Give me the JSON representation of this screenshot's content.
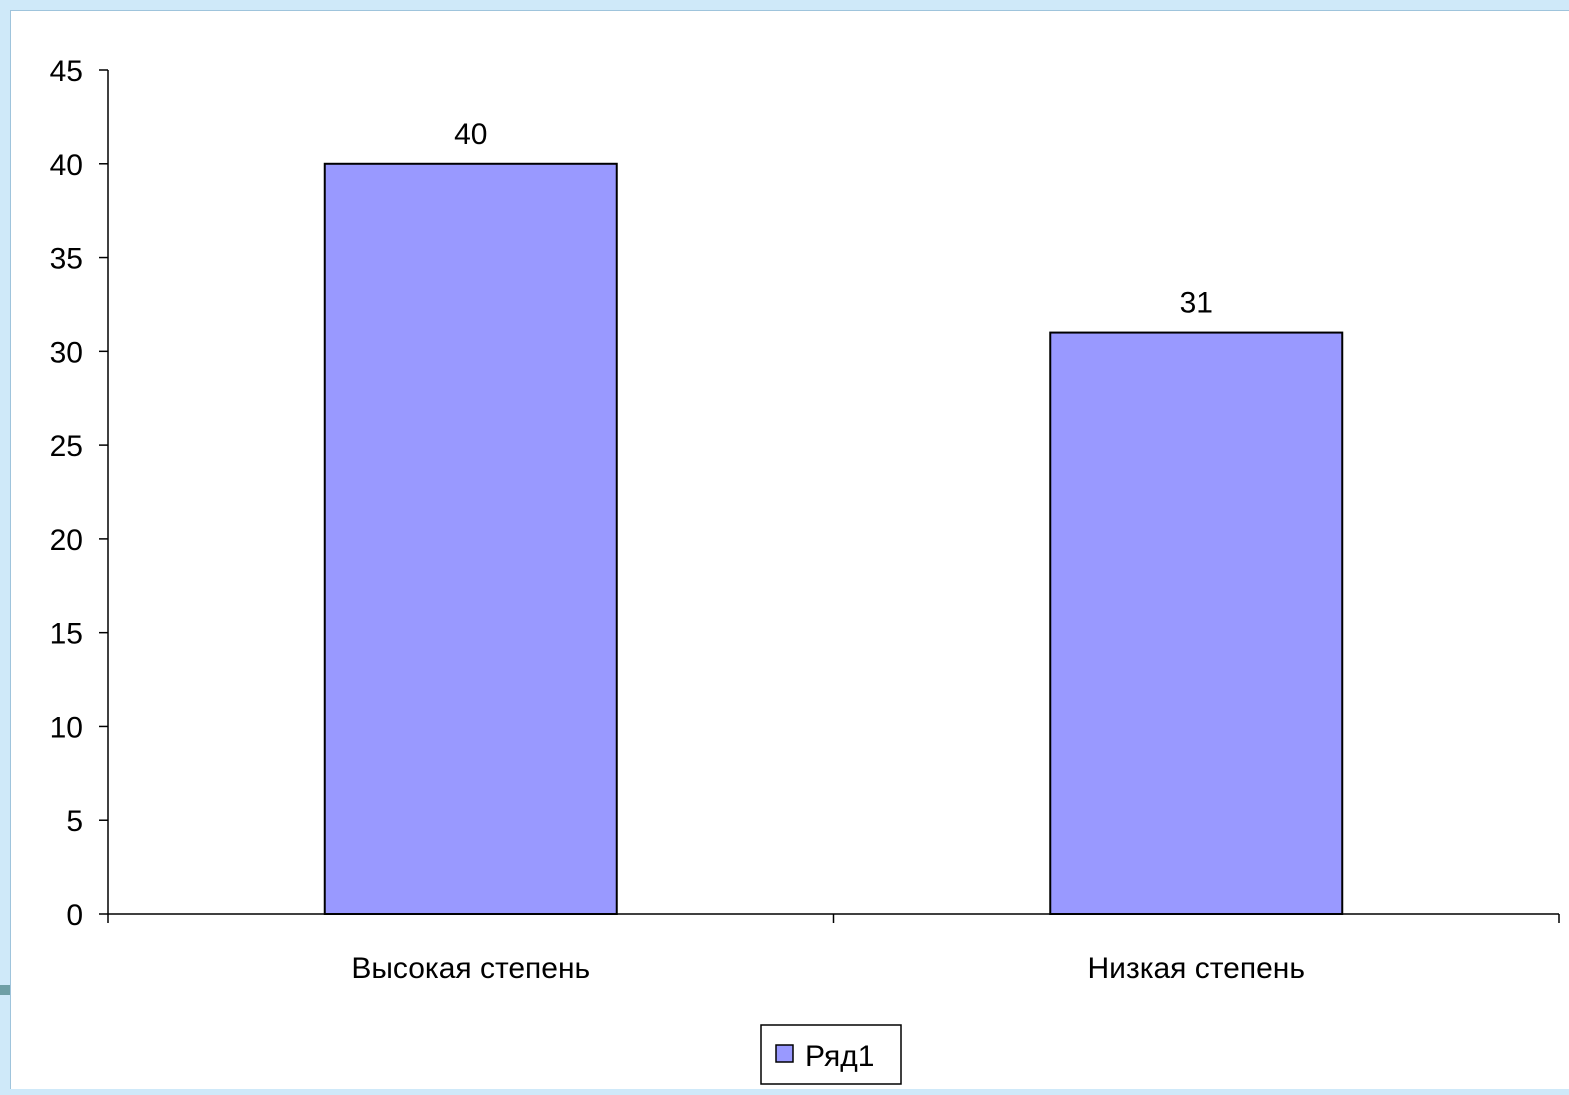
{
  "chart_data": {
    "type": "bar",
    "categories": [
      "Высокая степень",
      "Низкая степень"
    ],
    "series": [
      {
        "name": "Ряд1",
        "values": [
          40,
          31
        ],
        "color": "#9999ff"
      }
    ],
    "data_labels": [
      "40",
      "31"
    ],
    "title": "",
    "xlabel": "",
    "ylabel": "",
    "ylim": [
      0,
      45
    ],
    "yticks": [
      0,
      5,
      10,
      15,
      20,
      25,
      30,
      35,
      40,
      45
    ],
    "ytick_labels": [
      "0",
      "5",
      "10",
      "15",
      "20",
      "25",
      "30",
      "35",
      "40",
      "45"
    ],
    "grid": false,
    "legend": {
      "position": "bottom",
      "entries": [
        "Ряд1"
      ]
    }
  }
}
